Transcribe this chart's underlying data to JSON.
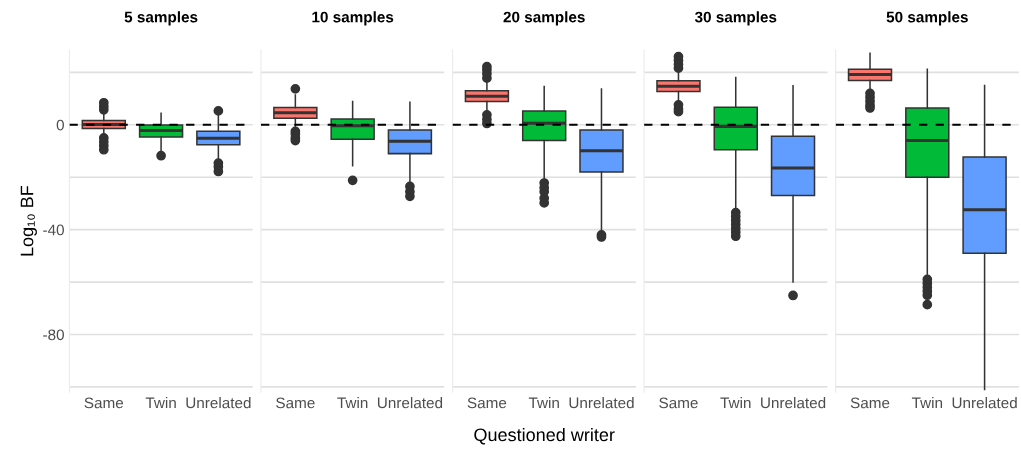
{
  "chart_data": [
    {
      "type": "box",
      "title": "5 samples",
      "ylabel": "Log₁₀ BF",
      "ylim": [
        -102,
        28.5
      ],
      "categories": [
        "Same",
        "Twin",
        "Unrelated"
      ],
      "colors": [
        "#f8766d",
        "#00ba38",
        "#619cff"
      ],
      "yticks": [
        {
          "value": -100,
          "label": null
        },
        -80,
        {
          "value": -60,
          "label": null
        },
        -40,
        {
          "value": -20,
          "label": null
        },
        0,
        {
          "value": 20,
          "label": null
        }
      ],
      "grid": "y",
      "ref_lines": [
        {
          "axis": "y",
          "value": 0,
          "line_style": "dashed",
          "color": "#000000"
        }
      ],
      "boxes": [
        {
          "low": -3.8,
          "q1": -1.4,
          "median": 0.1,
          "q3": 1.6,
          "high": 3.8,
          "outliers": [
            5.7,
            7,
            8.4,
            -5,
            -6.5,
            -8,
            -9.5
          ]
        },
        {
          "low": -10.2,
          "q1": -4.7,
          "median": -2.2,
          "q3": -0.1,
          "high": 4.4,
          "outliers": [
            -11.8
          ]
        },
        {
          "low": -14,
          "q1": -7.6,
          "median": -5.1,
          "q3": -2.5,
          "high": 3.8,
          "outliers": [
            5.3,
            -14.6,
            -16,
            -17.8
          ]
        }
      ]
    },
    {
      "type": "box",
      "title": "10 samples",
      "ylim": [
        -102,
        28.5
      ],
      "categories": [
        "Same",
        "Twin",
        "Unrelated"
      ],
      "colors": [
        "#f8766d",
        "#00ba38",
        "#619cff"
      ],
      "yticks": [
        {
          "value": -100,
          "label": null
        },
        -80,
        {
          "value": -60,
          "label": null
        },
        -40,
        {
          "value": -20,
          "label": null
        },
        0,
        {
          "value": 20,
          "label": null
        }
      ],
      "tick_labels": "x",
      "grid": "y",
      "ref_lines": [
        {
          "axis": "y",
          "value": 0,
          "line_style": "dashed",
          "color": "#000000"
        }
      ],
      "boxes": [
        {
          "low": -1.9,
          "q1": 2.5,
          "median": 4.6,
          "q3": 6.6,
          "high": 11.4,
          "outliers": [
            13.7,
            -2.5,
            -3.5,
            -5,
            -6
          ]
        },
        {
          "low": -15.6,
          "q1": -5.5,
          "median": -0.4,
          "q3": 2.2,
          "high": 8.9,
          "outliers": [
            -21.2
          ]
        },
        {
          "low": -22.9,
          "q1": -11,
          "median": -6.3,
          "q3": -2,
          "high": 8.6,
          "outliers": [
            -23.5,
            -25.5,
            -27.3
          ]
        }
      ]
    },
    {
      "type": "box",
      "title": "20 samples",
      "ylim": [
        -102,
        28.5
      ],
      "xlabel": "Questioned writer",
      "categories": [
        "Same",
        "Twin",
        "Unrelated"
      ],
      "colors": [
        "#f8766d",
        "#00ba38",
        "#619cff"
      ],
      "yticks": [
        {
          "value": -100,
          "label": null
        },
        -80,
        {
          "value": -60,
          "label": null
        },
        -40,
        {
          "value": -20,
          "label": null
        },
        0,
        {
          "value": 20,
          "label": null
        }
      ],
      "tick_labels": "x",
      "grid": "y",
      "ref_lines": [
        {
          "axis": "y",
          "value": 0,
          "line_style": "dashed",
          "color": "#000000"
        }
      ],
      "boxes": [
        {
          "low": 4.4,
          "q1": 8.9,
          "median": 10.9,
          "q3": 13,
          "high": 17.1,
          "outliers": [
            17.8,
            19.5,
            21,
            22.2,
            3.8,
            2,
            0.5
          ]
        },
        {
          "low": -21.6,
          "q1": -6,
          "median": 0.6,
          "q3": 5.3,
          "high": 14.6,
          "outliers": [
            -22.2,
            -24,
            -25.5,
            -28,
            -29.8
          ]
        },
        {
          "low": -40.6,
          "q1": -18,
          "median": -9.9,
          "q3": -2,
          "high": 13.6,
          "outliers": [
            -42,
            -42.8
          ]
        }
      ]
    },
    {
      "type": "box",
      "title": "30 samples",
      "ylim": [
        -102,
        28.5
      ],
      "categories": [
        "Same",
        "Twin",
        "Unrelated"
      ],
      "colors": [
        "#f8766d",
        "#00ba38",
        "#619cff"
      ],
      "yticks": [
        {
          "value": -100,
          "label": null
        },
        -80,
        {
          "value": -60,
          "label": null
        },
        -40,
        {
          "value": -20,
          "label": null
        },
        0,
        {
          "value": 20,
          "label": null
        }
      ],
      "tick_labels": "x",
      "grid": "y",
      "ref_lines": [
        {
          "axis": "y",
          "value": 0,
          "line_style": "dashed",
          "color": "#000000"
        }
      ],
      "boxes": [
        {
          "low": 8.3,
          "q1": 12.7,
          "median": 14.7,
          "q3": 16.8,
          "high": 21,
          "outliers": [
            21.6,
            23,
            24.5,
            26,
            7.6,
            6,
            5
          ]
        },
        {
          "low": -33,
          "q1": -9.5,
          "median": -0.6,
          "q3": 6.7,
          "high": 18,
          "outliers": [
            -33.5,
            -35,
            -36.5,
            -38,
            -39.5,
            -41,
            -42.5
          ]
        },
        {
          "low": -60,
          "q1": -27,
          "median": -16.5,
          "q3": -4.4,
          "high": 14.9,
          "outliers": [
            -65.1
          ]
        }
      ]
    },
    {
      "type": "box",
      "title": "50 samples",
      "ylim": [
        -102,
        28.5
      ],
      "categories": [
        "Same",
        "Twin",
        "Unrelated"
      ],
      "colors": [
        "#f8766d",
        "#00ba38",
        "#619cff"
      ],
      "yticks": [
        {
          "value": -100,
          "label": null
        },
        -80,
        {
          "value": -60,
          "label": null
        },
        -40,
        {
          "value": -20,
          "label": null
        },
        0,
        {
          "value": 20,
          "label": null
        }
      ],
      "tick_labels": "x",
      "grid": "y",
      "ref_lines": [
        {
          "axis": "y",
          "value": 0,
          "line_style": "dashed",
          "color": "#000000"
        }
      ],
      "boxes": [
        {
          "low": 12.7,
          "q1": 16.9,
          "median": 19.2,
          "q3": 21.2,
          "high": 27.3,
          "outliers": [
            12,
            10.5,
            9,
            7.5,
            6.4
          ]
        },
        {
          "low": -58.4,
          "q1": -20,
          "median": -6,
          "q3": 6.4,
          "high": 21.2,
          "outliers": [
            -59,
            -60.5,
            -62,
            -63.5,
            -65,
            -68.6
          ]
        },
        {
          "low": -101,
          "q1": -49,
          "median": -32.4,
          "q3": -12.3,
          "high": 15
        }
      ]
    }
  ]
}
